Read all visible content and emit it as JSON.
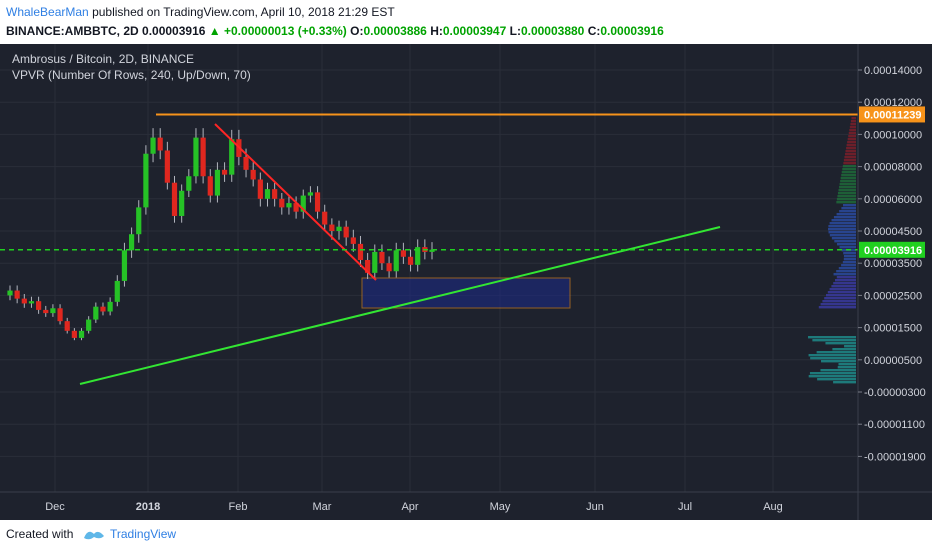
{
  "header": {
    "author": "WhaleBearMan",
    "published": "published on TradingView.com, April 10, 2018 21:29 EST",
    "symbol": "BINANCE:AMBBTC, 2D",
    "price": "0.00003916",
    "change": "+0.00000013 (+0.33%)",
    "o_label": "O:",
    "o_value": "0.00003886",
    "h_label": "H:",
    "h_value": "0.00003947",
    "l_label": "L:",
    "l_value": "0.00003880",
    "c_label": "C:",
    "c_value": "0.00003916"
  },
  "legend": {
    "title": "Ambrosus / Bitcoin, 2D, BINANCE",
    "indicator": "VPVR (Number Of Rows, 240, Up/Down, 70)"
  },
  "footer": {
    "created_with": "Created with",
    "brand": "TradingView"
  },
  "colors": {
    "background": "#1e222d",
    "up": "#26c226",
    "down": "#e0271f",
    "resistance": "#f7931a",
    "trend_up": "#33e633",
    "trend_down": "#ff2525",
    "current_price": "#20d020"
  },
  "chart_data": {
    "type": "candlestick",
    "y_ticks": [
      "0.00014000",
      "0.00012000",
      "0.00010000",
      "0.00008000",
      "0.00006000",
      "0.00004500",
      "0.00003500",
      "0.00002500",
      "0.00001500",
      "0.00000500",
      "-0.00000300",
      "-0.00001100",
      "-0.00001900"
    ],
    "x_ticks": [
      "Dec",
      "2018",
      "Feb",
      "Mar",
      "Apr",
      "May",
      "Jun",
      "Jul",
      "Aug"
    ],
    "price_labels": [
      {
        "text": "0.00011239",
        "color": "#f7931a"
      },
      {
        "text": "0.00003916",
        "color": "#20d020"
      }
    ],
    "resistance_level": 0.00011239,
    "current_price": 3.916e-05,
    "approx_candles": [
      [
        2.5e-05,
        2.65e-05
      ],
      [
        2.65e-05,
        2.4e-05
      ],
      [
        2.4e-05,
        2.25e-05
      ],
      [
        2.25e-05,
        2.32e-05
      ],
      [
        2.32e-05,
        2.05e-05
      ],
      [
        2.05e-05,
        1.95e-05
      ],
      [
        1.95e-05,
        2.1e-05
      ],
      [
        2.1e-05,
        1.7e-05
      ],
      [
        1.7e-05,
        1.4e-05
      ],
      [
        1.4e-05,
        1.18e-05
      ],
      [
        1.18e-05,
        1.4e-05
      ],
      [
        1.4e-05,
        1.75e-05
      ],
      [
        1.75e-05,
        2.15e-05
      ],
      [
        2.15e-05,
        2e-05
      ],
      [
        2e-05,
        2.3e-05
      ],
      [
        2.3e-05,
        2.95e-05
      ],
      [
        2.95e-05,
        3.9e-05
      ],
      [
        3.9e-05,
        4.4e-05
      ],
      [
        4.4e-05,
        5.6e-05
      ],
      [
        5.6e-05,
        8.8e-05
      ],
      [
        8.8e-05,
        9.8e-05
      ],
      [
        9.8e-05,
        9e-05
      ],
      [
        9e-05,
        7e-05
      ],
      [
        7e-05,
        5.2e-05
      ],
      [
        5.2e-05,
        6.5e-05
      ],
      [
        6.5e-05,
        7.4e-05
      ],
      [
        7.4e-05,
        9.8e-05
      ],
      [
        9.8e-05,
        7.4e-05
      ],
      [
        7.4e-05,
        6.2e-05
      ],
      [
        6.2e-05,
        7.8e-05
      ],
      [
        7.8e-05,
        7.5e-05
      ],
      [
        7.5e-05,
        9.7e-05
      ],
      [
        9.7e-05,
        8.6e-05
      ],
      [
        8.6e-05,
        7.8e-05
      ],
      [
        7.8e-05,
        7.2e-05
      ],
      [
        7.2e-05,
        6e-05
      ],
      [
        6e-05,
        6.6e-05
      ],
      [
        6.6e-05,
        6e-05
      ],
      [
        6e-05,
        5.6e-05
      ],
      [
        5.6e-05,
        5.8e-05
      ],
      [
        5.8e-05,
        5.4e-05
      ],
      [
        5.4e-05,
        6.2e-05
      ],
      [
        6.2e-05,
        6.4e-05
      ],
      [
        6.4e-05,
        5.4e-05
      ],
      [
        5.4e-05,
        4.8e-05
      ],
      [
        4.8e-05,
        4.5e-05
      ],
      [
        4.5e-05,
        4.7e-05
      ],
      [
        4.7e-05,
        4.3e-05
      ],
      [
        4.3e-05,
        4.1e-05
      ],
      [
        4.1e-05,
        3.6e-05
      ],
      [
        3.6e-05,
        3.2e-05
      ],
      [
        3.2e-05,
        3.85e-05
      ],
      [
        3.85e-05,
        3.5e-05
      ],
      [
        3.5e-05,
        3.25e-05
      ],
      [
        3.25e-05,
        3.9e-05
      ],
      [
        3.9e-05,
        3.7e-05
      ],
      [
        3.7e-05,
        3.45e-05
      ],
      [
        3.45e-05,
        4e-05
      ],
      [
        4e-05,
        3.85e-05
      ],
      [
        3.85e-05,
        3.92e-05
      ]
    ],
    "drawings": {
      "rising_trendline": "green, from Dec low through Mar lows extending to Jul",
      "falling_trendline": "red, from Feb high to Mar",
      "consolidation_box": "orange outlined, Mar to late May"
    }
  }
}
